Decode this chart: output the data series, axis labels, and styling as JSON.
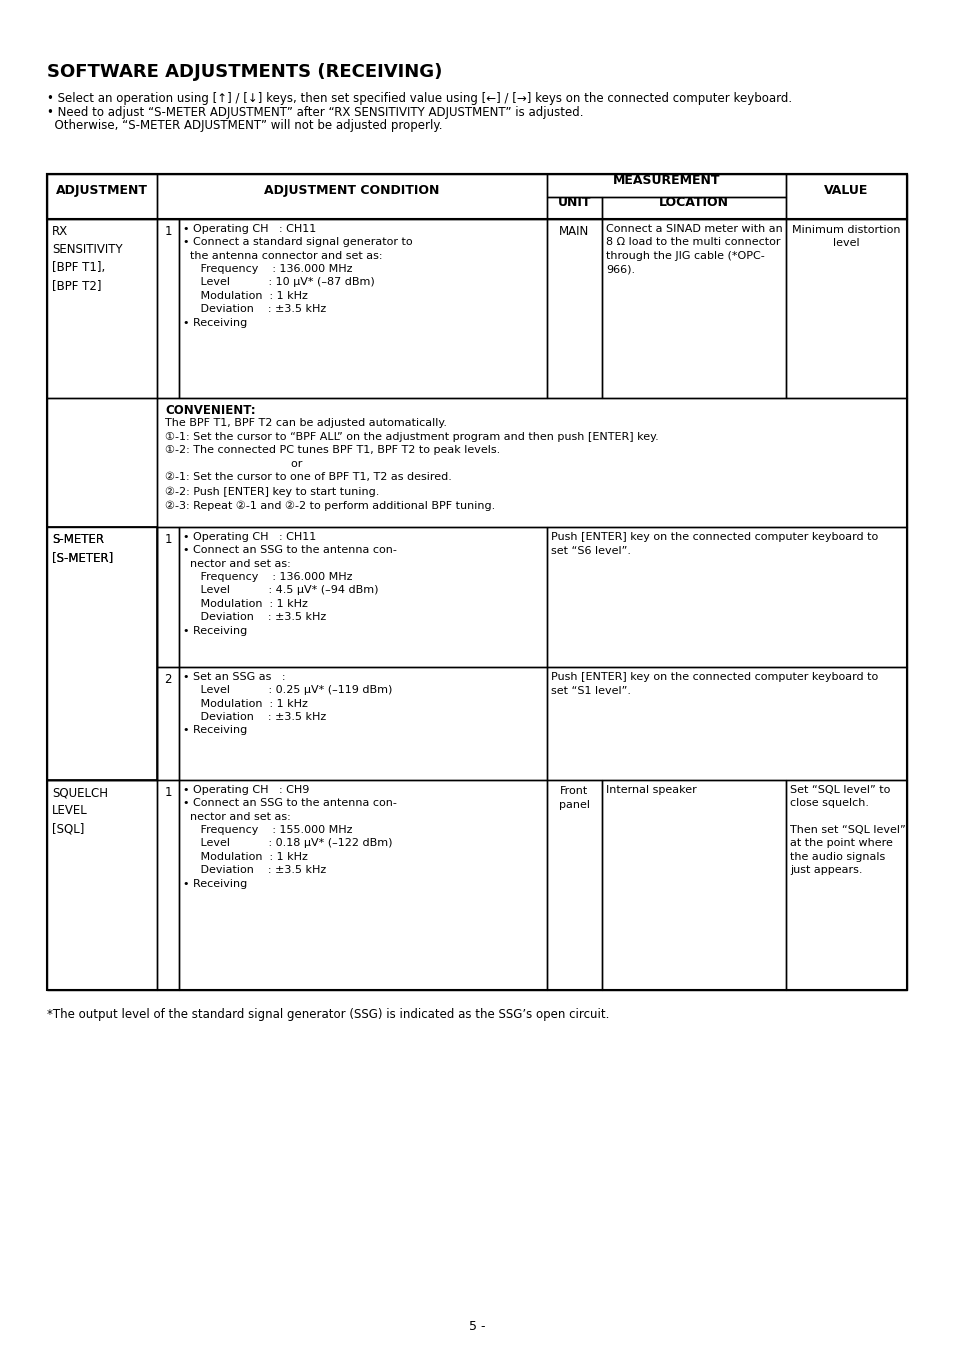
{
  "title": "SOFTWARE ADJUSTMENTS (RECEIVING)",
  "bullet1": "• Select an operation using [↑] / [↓] keys, then set specified value using [←] / [→] keys on the connected computer keyboard.",
  "bullet2": "• Need to adjust “S-METER ADJUSTMENT” after “RX SENSITIVITY ADJUSTMENT” is adjusted.",
  "bullet3": "  Otherwise, “S-METER ADJUSTMENT” will not be adjusted properly.",
  "footnote": "*The output level of the standard signal generator (SSG) is indicated as the SSG’s open circuit.",
  "page_number": "5 -",
  "bg": "#ffffff"
}
